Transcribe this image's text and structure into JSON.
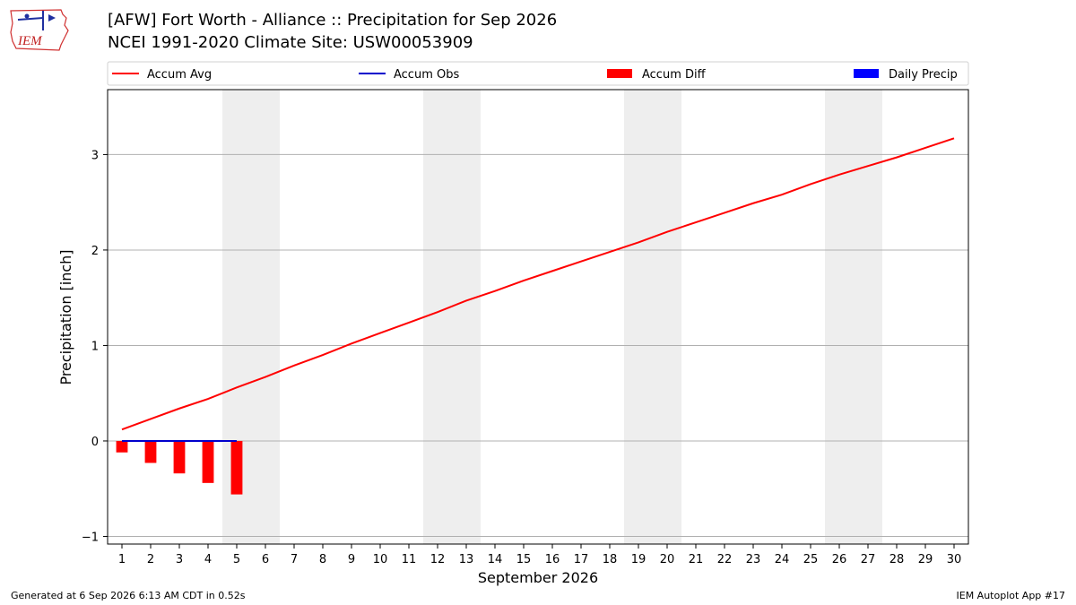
{
  "header": {
    "title_line1": "[AFW] Fort Worth - Alliance :: Precipitation for Sep 2026",
    "title_line2": "NCEI 1991-2020 Climate Site: USW00053909",
    "logo_text": "IEM"
  },
  "footer": {
    "left": "Generated at 6 Sep 2026 6:13 AM CDT in 0.52s",
    "right": "IEM Autoplot App #17"
  },
  "colors": {
    "accum_avg": "#ff0000",
    "accum_obs": "#0000cc",
    "accum_diff": "#ff0000",
    "daily_precip": "#0000ff",
    "weekend_shade": "#eeeeee",
    "grid": "#b0b0b0"
  },
  "chart_data": {
    "type": "line",
    "xlabel": "September 2026",
    "ylabel": "Precipitation [inch]",
    "x": [
      1,
      2,
      3,
      4,
      5,
      6,
      7,
      8,
      9,
      10,
      11,
      12,
      13,
      14,
      15,
      16,
      17,
      18,
      19,
      20,
      21,
      22,
      23,
      24,
      25,
      26,
      27,
      28,
      29,
      30
    ],
    "xlim": [
      0.5,
      30.5
    ],
    "ylim": [
      -1.08,
      3.68
    ],
    "yticks": [
      -1,
      0,
      1,
      2,
      3
    ],
    "grid": "horizontal",
    "legend_position": "top",
    "weekend_days": [
      5,
      6,
      12,
      13,
      19,
      20,
      26,
      27
    ],
    "legend": [
      {
        "label": "Accum Avg",
        "kind": "line",
        "color": "#ff0000"
      },
      {
        "label": "Accum Obs",
        "kind": "line",
        "color": "#0000cc"
      },
      {
        "label": "Accum Diff",
        "kind": "bar",
        "color": "#ff0000"
      },
      {
        "label": "Daily Precip",
        "kind": "bar",
        "color": "#0000ff"
      }
    ],
    "series": [
      {
        "name": "Accum Avg",
        "type": "line",
        "values": [
          0.12,
          0.23,
          0.34,
          0.44,
          0.56,
          0.67,
          0.79,
          0.9,
          1.02,
          1.13,
          1.24,
          1.35,
          1.47,
          1.57,
          1.68,
          1.78,
          1.88,
          1.98,
          2.08,
          2.19,
          2.29,
          2.39,
          2.49,
          2.58,
          2.69,
          2.79,
          2.88,
          2.97,
          3.07,
          3.17
        ]
      },
      {
        "name": "Accum Obs",
        "type": "line",
        "x": [
          1,
          2,
          3,
          4,
          5
        ],
        "values": [
          0,
          0,
          0,
          0,
          0
        ]
      },
      {
        "name": "Accum Diff",
        "type": "bar",
        "x": [
          1,
          2,
          3,
          4,
          5
        ],
        "values": [
          -0.12,
          -0.23,
          -0.34,
          -0.44,
          -0.56
        ]
      },
      {
        "name": "Daily Precip",
        "type": "bar",
        "x": [
          1,
          2,
          3,
          4,
          5
        ],
        "values": [
          0,
          0,
          0,
          0,
          0
        ]
      }
    ]
  }
}
